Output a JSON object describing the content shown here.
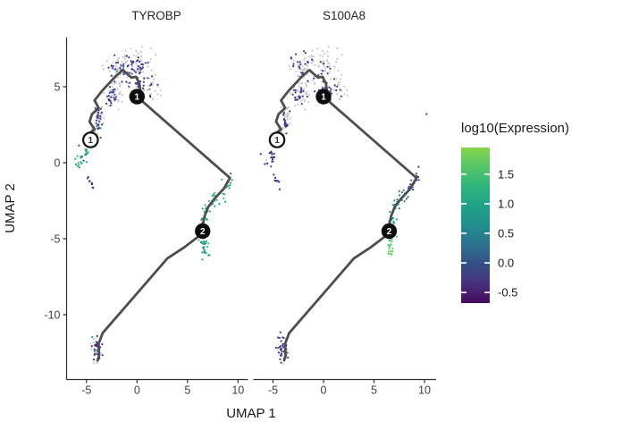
{
  "chart_data": {
    "type": "scatter",
    "subtype": "umap-trajectory-faceted",
    "xlabel": "UMAP 1",
    "ylabel": "UMAP 2",
    "x_ticks": [
      -5,
      0,
      5,
      10
    ],
    "y_ticks": [
      5,
      0,
      -5,
      -10
    ],
    "xlim": [
      -7.0,
      11.0
    ],
    "ylim": [
      -14.3,
      8.2
    ],
    "grid": false,
    "palette": {
      "gray": "#c9cacd",
      "navy": "#3e3e96",
      "purple": "#46247a",
      "blueteal": "#2c728e",
      "teal": "#1fa187",
      "green": "#3dbc74",
      "lightgreen": "#5ec962",
      "trajectory": "#4e4e4e",
      "axis": "#2e2e2e",
      "node_fill_dark": "#0d0d0d",
      "node_fill_light": "#ffffff"
    },
    "legend": {
      "title": "log10(Expression)",
      "position": "right",
      "ticks": [
        "1.5",
        "1.0",
        "0.5",
        "0.0",
        "-0.5"
      ],
      "tick_values": [
        1.5,
        1.0,
        0.5,
        0.0,
        -0.5
      ],
      "value_range_top_to_bottom": [
        1.95,
        -0.68
      ],
      "gradient_top_to_bottom": [
        [
          "0%",
          "#86d549"
        ],
        [
          "12%",
          "#56c667"
        ],
        [
          "25%",
          "#2fb47c"
        ],
        [
          "38%",
          "#21a187"
        ],
        [
          "50%",
          "#218f8d"
        ],
        [
          "62%",
          "#2c728e"
        ],
        [
          "75%",
          "#365085"
        ],
        [
          "87%",
          "#46327e"
        ],
        [
          "100%",
          "#460b5e"
        ]
      ]
    },
    "trajectory": {
      "path": [
        [
          -4.6,
          1.5
        ],
        [
          -4.8,
          1.9
        ],
        [
          -4.2,
          2.2
        ],
        [
          -4.7,
          2.7
        ],
        [
          -4.45,
          3.2
        ],
        [
          -3.8,
          3.6
        ],
        [
          -4.2,
          4.1
        ],
        [
          -3.5,
          4.7
        ],
        [
          -2.8,
          5.2
        ],
        [
          -2.1,
          5.7
        ],
        [
          -1.4,
          6.1
        ],
        [
          -0.9,
          5.8
        ],
        [
          -0.55,
          5.6
        ],
        [
          -0.1,
          5.65
        ],
        [
          0.24,
          5.2
        ],
        [
          0.33,
          4.8
        ],
        [
          0.0,
          4.35
        ],
        [
          9.2,
          -1.0
        ],
        [
          8.6,
          -1.7
        ],
        [
          7.7,
          -2.35
        ],
        [
          7.05,
          -2.9
        ],
        [
          6.7,
          -3.5
        ],
        [
          6.5,
          -4.1
        ],
        [
          6.5,
          -4.5
        ],
        [
          6.0,
          -4.9
        ],
        [
          4.6,
          -5.6
        ],
        [
          3.0,
          -6.3
        ],
        [
          -3.4,
          -11.2
        ],
        [
          -3.8,
          -11.9
        ],
        [
          -3.75,
          -12.7
        ],
        [
          -3.9,
          -13.0
        ]
      ],
      "nodes": [
        {
          "label": "1",
          "type": "leaf",
          "x": -4.6,
          "y": 1.5
        },
        {
          "label": "1",
          "type": "branch",
          "x": 0.0,
          "y": 4.35
        },
        {
          "label": "2",
          "type": "branch",
          "x": 6.5,
          "y": -4.5
        }
      ]
    },
    "facets": [
      {
        "title": "TYROBP",
        "clusters": [
          {
            "name": "top-blob-gray",
            "shape": "blobs",
            "seed": 11,
            "n": 230,
            "parts": [
              [
                -1.9,
                6.3,
                1.5,
                1.2
              ],
              [
                0.2,
                6.6,
                1.6,
                1.0
              ],
              [
                0.8,
                4.9,
                1.9,
                1.15
              ],
              [
                -2.3,
                4.4,
                1.0,
                0.95
              ],
              [
                -3.7,
                3.0,
                0.5,
                0.85
              ],
              [
                -4.3,
                2.0,
                0.35,
                0.6
              ]
            ],
            "colors": [
              [
                "gray",
                1
              ]
            ]
          },
          {
            "name": "top-blob-expressed",
            "shape": "blobs",
            "seed": 12,
            "n": 130,
            "parts": [
              [
                -1.7,
                6.2,
                1.4,
                1.1
              ],
              [
                0.5,
                5.2,
                1.7,
                1.1
              ],
              [
                -0.3,
                6.4,
                1.5,
                0.9
              ],
              [
                -2.4,
                4.5,
                0.9,
                0.8
              ],
              [
                -3.8,
                2.8,
                0.45,
                0.8
              ]
            ],
            "colors": [
              [
                "navy",
                0.86
              ],
              [
                "purple",
                0.08
              ],
              [
                "teal",
                0.04
              ],
              [
                "blueteal",
                0.02
              ]
            ]
          },
          {
            "name": "left-high-expression",
            "shape": "blobs",
            "seed": 13,
            "n": 28,
            "parts": [
              [
                -5.6,
                0.15,
                0.75,
                0.75
              ],
              [
                -5.2,
                0.7,
                0.4,
                0.4
              ]
            ],
            "colors": [
              [
                "teal",
                0.72
              ],
              [
                "green",
                0.18
              ],
              [
                "navy",
                0.1
              ]
            ]
          },
          {
            "name": "left-streak",
            "shape": "streak",
            "seed": 14,
            "n": 9,
            "p1": [
              -4.95,
              -0.8
            ],
            "p2": [
              -4.15,
              -1.8
            ],
            "jitter": 0.12,
            "colors": [
              [
                "purple",
                0.7
              ],
              [
                "navy",
                0.3
              ]
            ]
          },
          {
            "name": "right-curve-high",
            "shape": "curve",
            "seed": 15,
            "n": 85,
            "jitter": 0.33,
            "pts": [
              [
                9.35,
                -0.8
              ],
              [
                8.75,
                -1.55
              ],
              [
                7.85,
                -2.3
              ],
              [
                7.1,
                -2.9
              ],
              [
                6.75,
                -3.55
              ],
              [
                6.55,
                -4.2
              ],
              [
                6.5,
                -4.85
              ],
              [
                6.6,
                -5.5
              ],
              [
                6.75,
                -5.95
              ]
            ],
            "colors": [
              [
                "teal",
                0.55
              ],
              [
                "green",
                0.35
              ],
              [
                "blueteal",
                0.1
              ]
            ]
          },
          {
            "name": "bottom-blob",
            "shape": "blobs",
            "seed": 16,
            "n": 52,
            "parts": [
              [
                -4.05,
                -12.2,
                0.6,
                0.95
              ]
            ],
            "colors": [
              [
                "gray",
                0.42
              ],
              [
                "navy",
                0.4
              ],
              [
                "purple",
                0.12
              ],
              [
                "teal",
                0.06
              ]
            ]
          }
        ]
      },
      {
        "title": "S100A8",
        "clusters": [
          {
            "name": "top-blob-gray",
            "shape": "blobs",
            "seed": 11,
            "n": 230,
            "parts": [
              [
                -1.9,
                6.3,
                1.5,
                1.2
              ],
              [
                0.2,
                6.6,
                1.6,
                1.0
              ],
              [
                0.8,
                4.9,
                1.9,
                1.15
              ],
              [
                -2.3,
                4.4,
                1.0,
                0.95
              ],
              [
                -3.7,
                3.0,
                0.5,
                0.85
              ],
              [
                -4.3,
                2.0,
                0.35,
                0.6
              ]
            ],
            "colors": [
              [
                "gray",
                1
              ]
            ]
          },
          {
            "name": "top-blob-expressed",
            "shape": "blobs",
            "seed": 22,
            "n": 95,
            "parts": [
              [
                -2.2,
                6.4,
                1.3,
                1.0
              ],
              [
                -0.5,
                5.6,
                1.7,
                1.2
              ],
              [
                0.6,
                4.9,
                1.5,
                1.0
              ],
              [
                -2.4,
                4.4,
                0.9,
                0.8
              ],
              [
                -3.8,
                2.7,
                0.45,
                0.8
              ]
            ],
            "colors": [
              [
                "navy",
                0.78
              ],
              [
                "purple",
                0.22
              ]
            ]
          },
          {
            "name": "left-low-expression",
            "shape": "blobs",
            "seed": 23,
            "n": 20,
            "parts": [
              [
                -5.5,
                0.1,
                0.7,
                0.7
              ],
              [
                -5.1,
                0.6,
                0.4,
                0.4
              ]
            ],
            "colors": [
              [
                "navy",
                0.62
              ],
              [
                "purple",
                0.28
              ],
              [
                "gray",
                0.1
              ]
            ]
          },
          {
            "name": "left-streak",
            "shape": "streak",
            "seed": 24,
            "n": 8,
            "p1": [
              -4.95,
              -0.8
            ],
            "p2": [
              -4.15,
              -1.8
            ],
            "jitter": 0.12,
            "colors": [
              [
                "purple",
                0.75
              ],
              [
                "navy",
                0.25
              ]
            ]
          },
          {
            "name": "right-curve-graded",
            "shape": "curve",
            "seed": 25,
            "n": 80,
            "jitter": 0.33,
            "pts": [
              [
                9.35,
                -0.8
              ],
              [
                8.75,
                -1.55
              ],
              [
                7.85,
                -2.3
              ],
              [
                7.1,
                -2.9
              ],
              [
                6.75,
                -3.55
              ],
              [
                6.55,
                -4.2
              ],
              [
                6.5,
                -4.85
              ],
              [
                6.6,
                -5.5
              ],
              [
                6.75,
                -5.95
              ]
            ],
            "ramp": [
              "navy",
              "blueteal",
              "teal",
              "teal",
              "green",
              "lightgreen"
            ],
            "colors": [
              [
                "teal",
                1
              ]
            ]
          },
          {
            "name": "bottom-blob",
            "shape": "blobs",
            "seed": 26,
            "n": 50,
            "parts": [
              [
                -4.05,
                -12.2,
                0.6,
                0.95
              ]
            ],
            "colors": [
              [
                "gray",
                0.4
              ],
              [
                "navy",
                0.38
              ],
              [
                "purple",
                0.18
              ],
              [
                "teal",
                0.04
              ]
            ]
          },
          {
            "name": "isolated-cell",
            "shape": "points",
            "seed": 27,
            "pts": [
              [
                10.2,
                3.2
              ]
            ],
            "colors": [
              [
                "navy",
                1
              ]
            ]
          }
        ]
      }
    ]
  }
}
